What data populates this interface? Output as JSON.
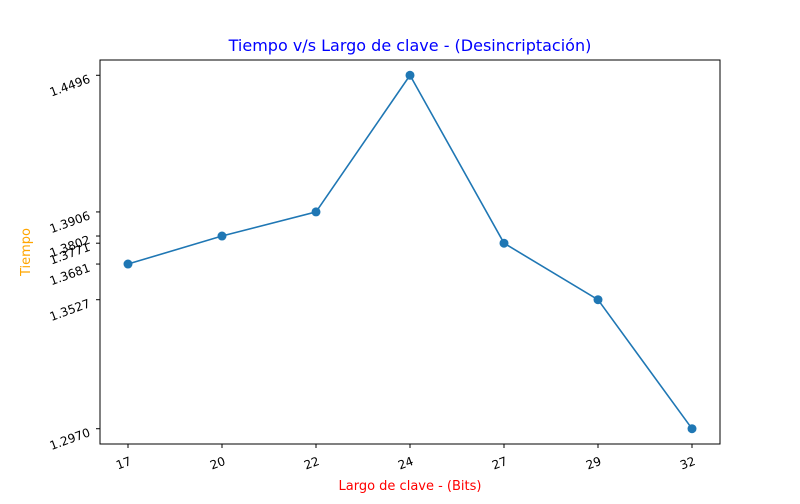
{
  "chart_data": {
    "type": "line",
    "title": "Tiempo v/s Largo de clave - (Desincriptación)",
    "xlabel": "Largo de clave - (Bits)",
    "ylabel": "Tiempo",
    "categories": [
      "17",
      "20",
      "22",
      "24",
      "27",
      "29",
      "32"
    ],
    "series": [
      {
        "values": [
          1.3681,
          1.3802,
          1.3906,
          1.4496,
          1.3771,
          1.3527,
          1.297
        ]
      }
    ],
    "y_ticks": [
      "1.2970",
      "1.3527",
      "1.3681",
      "1.3771",
      "1.3802",
      "1.3906",
      "1.4496"
    ],
    "ylim": [
      1.2904,
      1.4562
    ],
    "grid": false,
    "colors": {
      "line": "#1f77b4",
      "title": "#0000ff",
      "xlabel": "#ff0000",
      "ylabel": "#ffa500"
    }
  }
}
